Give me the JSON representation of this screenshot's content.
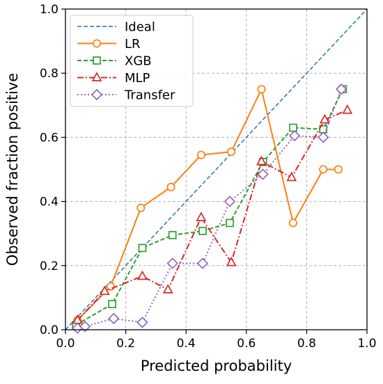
{
  "chart_data": {
    "type": "line",
    "xlabel": "Predicted probability",
    "ylabel": "Observed fraction positive",
    "xlim": [
      0.0,
      1.0
    ],
    "ylim": [
      0.0,
      1.0
    ],
    "x_ticks": [
      "0.0",
      "0.2",
      "0.4",
      "0.6",
      "0.8",
      "1.0"
    ],
    "y_ticks": [
      "0.0",
      "0.2",
      "0.4",
      "0.6",
      "0.8",
      "1.0"
    ],
    "grid": true,
    "legend_position": "top-left",
    "series": [
      {
        "name": "Ideal",
        "color": "#1f77b4",
        "line_style": "dashed",
        "marker": "none",
        "x": [
          0.0,
          1.0
        ],
        "y": [
          0.0,
          1.0
        ]
      },
      {
        "name": "LR",
        "color": "#ff7f0e",
        "line_style": "solid",
        "marker": "circle",
        "x": [
          0.04,
          0.15,
          0.25,
          0.35,
          0.45,
          0.55,
          0.65,
          0.755,
          0.855,
          0.905
        ],
        "y": [
          0.03,
          0.135,
          0.38,
          0.445,
          0.545,
          0.555,
          0.75,
          0.333,
          0.5,
          0.5
        ]
      },
      {
        "name": "XGB",
        "color": "#2ca02c",
        "line_style": "dashed",
        "marker": "square",
        "x": [
          0.035,
          0.155,
          0.255,
          0.355,
          0.455,
          0.545,
          0.655,
          0.755,
          0.855,
          0.92
        ],
        "y": [
          0.015,
          0.08,
          0.255,
          0.295,
          0.308,
          0.333,
          0.523,
          0.63,
          0.625,
          0.75
        ]
      },
      {
        "name": "MLP",
        "color": "#d62728",
        "line_style": "dashdot",
        "marker": "triangle",
        "x": [
          0.04,
          0.13,
          0.255,
          0.34,
          0.45,
          0.55,
          0.65,
          0.75,
          0.86,
          0.935
        ],
        "y": [
          0.03,
          0.12,
          0.167,
          0.125,
          0.35,
          0.21,
          0.525,
          0.475,
          0.655,
          0.685
        ]
      },
      {
        "name": "Transfer",
        "color": "#9467bd",
        "line_style": "dotted",
        "marker": "diamond",
        "x": [
          0.04,
          0.065,
          0.16,
          0.255,
          0.355,
          0.455,
          0.545,
          0.655,
          0.76,
          0.855,
          0.915
        ],
        "y": [
          0.005,
          0.01,
          0.035,
          0.023,
          0.207,
          0.207,
          0.4,
          0.485,
          0.605,
          0.6,
          0.75
        ]
      }
    ]
  }
}
